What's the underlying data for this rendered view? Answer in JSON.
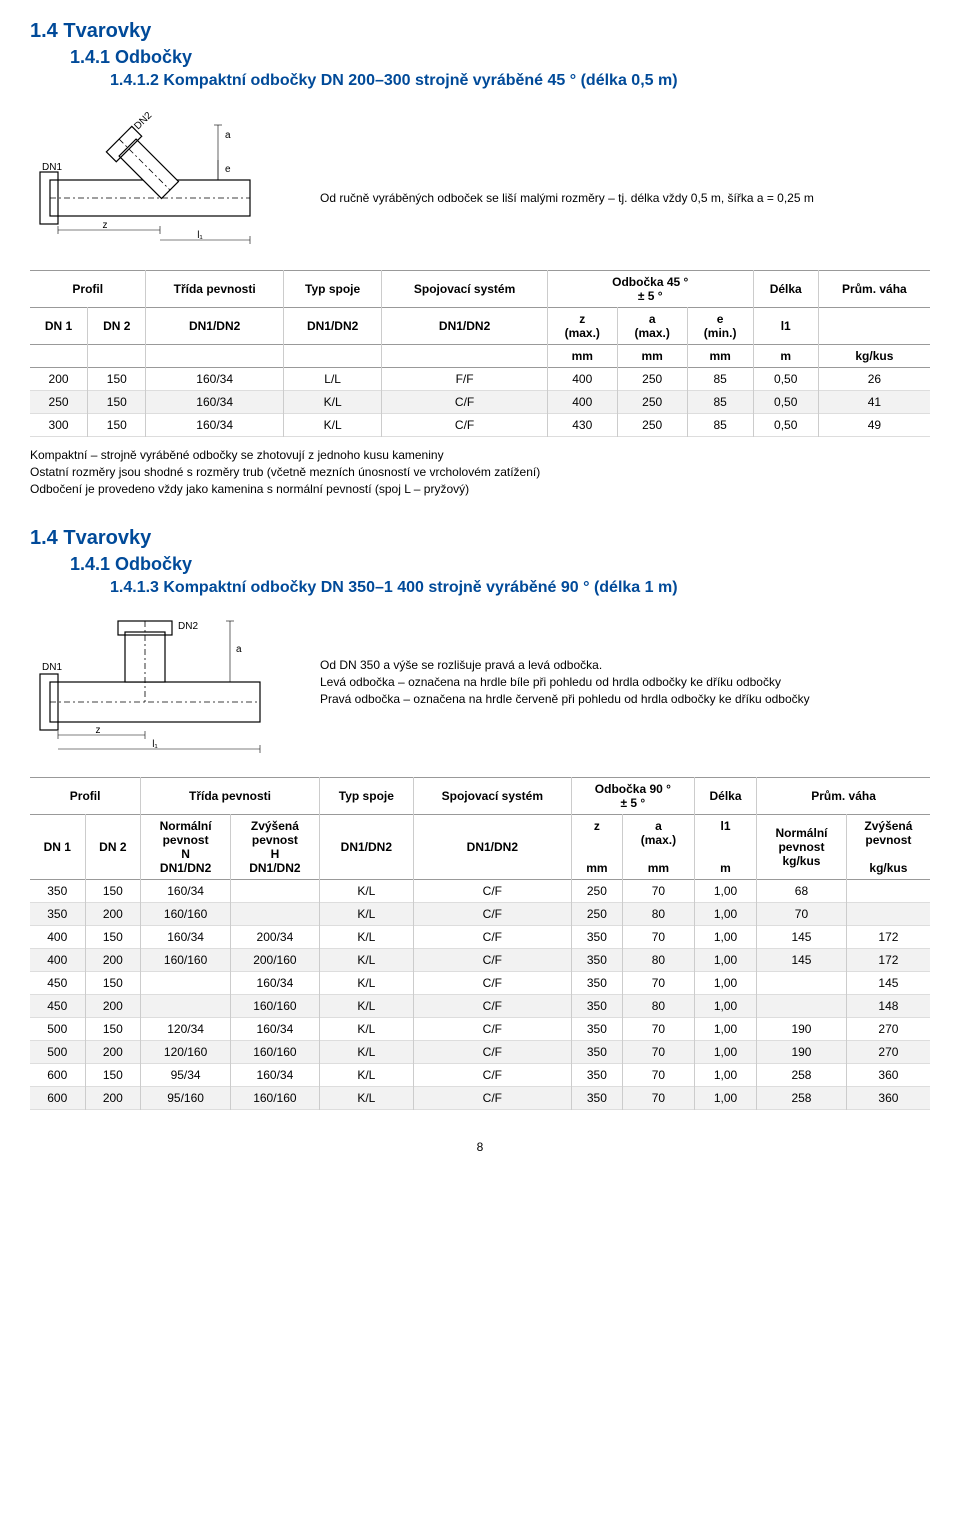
{
  "section1": {
    "h1": "1.4 Tvarovky",
    "h2": "1.4.1 Odbočky",
    "h3": "1.4.1.2 Kompaktní odbočky DN 200–300 strojně vyráběné 45 ° (délka 0,5 m)",
    "note1": "Od ručně vyráběných odboček se liší malými rozměry – tj. délka vždy 0,5 m, šířka a = 0,25 m",
    "diagram": {
      "dn1": "DN1",
      "dn2": "DN2",
      "a": "a",
      "e": "e",
      "z": "z",
      "l1": "l₁"
    },
    "headers1": {
      "profil": "Profil",
      "trida": "Třída pevnosti",
      "typ": "Typ spoje",
      "spoj": "Spojovací systém",
      "odbocka": "Odbočka 45 °\n± 5 °",
      "delka": "Délka",
      "vaha": "Prům. váha"
    },
    "headers2": {
      "dn1": "DN 1",
      "dn2": "DN 2",
      "dn12a": "DN1/DN2",
      "dn12b": "DN1/DN2",
      "dn12c": "DN1/DN2",
      "z": "z\n(max.)",
      "a": "a\n(max.)",
      "e": "e\n(min.)",
      "l1": "l1"
    },
    "units": {
      "mm": "mm",
      "m": "m",
      "kgkus": "kg/kus"
    },
    "rows": [
      [
        "200",
        "150",
        "160/34",
        "L/L",
        "F/F",
        "400",
        "250",
        "85",
        "0,50",
        "26"
      ],
      [
        "250",
        "150",
        "160/34",
        "K/L",
        "C/F",
        "400",
        "250",
        "85",
        "0,50",
        "41"
      ],
      [
        "300",
        "150",
        "160/34",
        "K/L",
        "C/F",
        "430",
        "250",
        "85",
        "0,50",
        "49"
      ]
    ],
    "tablenote": "Kompaktní – strojně vyráběné odbočky se zhotovují z jednoho kusu kameniny\nOstatní rozměry jsou shodné s rozměry trub (včetně mezních únosností ve vrcholovém zatížení)\nOdbočení je provedeno vždy jako kamenina s normální pevností (spoj L – pryžový)"
  },
  "section2": {
    "h1": "1.4 Tvarovky",
    "h2": "1.4.1 Odbočky",
    "h3": "1.4.1.3 Kompaktní odbočky DN 350–1 400 strojně vyráběné 90 ° (délka 1 m)",
    "diagram": {
      "dn1": "DN1",
      "dn2": "DN2",
      "a": "a",
      "z": "z",
      "l1": "l₁"
    },
    "note": "Od DN 350 a výše se rozlišuje pravá a levá odbočka.\nLevá odbočka – označena na hrdle bíle při pohledu od hrdla odbočky ke dříku odbočky\nPravá odbočka – označena na hrdle červeně při pohledu od hrdla odbočky ke dříku odbočky",
    "headers1": {
      "profil": "Profil",
      "trida": "Třída pevnosti",
      "typ": "Typ spoje",
      "spoj": "Spojovací systém",
      "odbocka": "Odbočka 90 °\n± 5 °",
      "delka": "Délka",
      "vaha": "Prům. váha"
    },
    "headers2": {
      "dn1": "DN 1",
      "dn2": "DN 2",
      "norm": "Normální\npevnost\nN\nDN1/DN2",
      "zvys": "Zvýšená\npevnost\nH\nDN1/DN2",
      "dn12a": "DN1/DN2",
      "dn12b": "DN1/DN2",
      "z": "z\n\n\nmm",
      "a": "a\n(max.)\n\nmm",
      "l1": "l1\n\n\nm",
      "normv": "Normální\npevnost\nkg/kus",
      "zvysv": "Zvýšená\npevnost\n\nkg/kus"
    },
    "rows": [
      [
        "350",
        "150",
        "160/34",
        "",
        "K/L",
        "C/F",
        "250",
        "70",
        "1,00",
        "68",
        ""
      ],
      [
        "350",
        "200",
        "160/160",
        "",
        "K/L",
        "C/F",
        "250",
        "80",
        "1,00",
        "70",
        ""
      ],
      [
        "400",
        "150",
        "160/34",
        "200/34",
        "K/L",
        "C/F",
        "350",
        "70",
        "1,00",
        "145",
        "172"
      ],
      [
        "400",
        "200",
        "160/160",
        "200/160",
        "K/L",
        "C/F",
        "350",
        "80",
        "1,00",
        "145",
        "172"
      ],
      [
        "450",
        "150",
        "",
        "160/34",
        "K/L",
        "C/F",
        "350",
        "70",
        "1,00",
        "",
        "145"
      ],
      [
        "450",
        "200",
        "",
        "160/160",
        "K/L",
        "C/F",
        "350",
        "80",
        "1,00",
        "",
        "148"
      ],
      [
        "500",
        "150",
        "120/34",
        "160/34",
        "K/L",
        "C/F",
        "350",
        "70",
        "1,00",
        "190",
        "270"
      ],
      [
        "500",
        "200",
        "120/160",
        "160/160",
        "K/L",
        "C/F",
        "350",
        "70",
        "1,00",
        "190",
        "270"
      ],
      [
        "600",
        "150",
        "95/34",
        "160/34",
        "K/L",
        "C/F",
        "350",
        "70",
        "1,00",
        "258",
        "360"
      ],
      [
        "600",
        "200",
        "95/160",
        "160/160",
        "K/L",
        "C/F",
        "350",
        "70",
        "1,00",
        "258",
        "360"
      ]
    ]
  },
  "pagenum": "8",
  "colors": {
    "heading": "#004a99",
    "stripe": "#f2f2f2",
    "border": "#cccccc"
  }
}
